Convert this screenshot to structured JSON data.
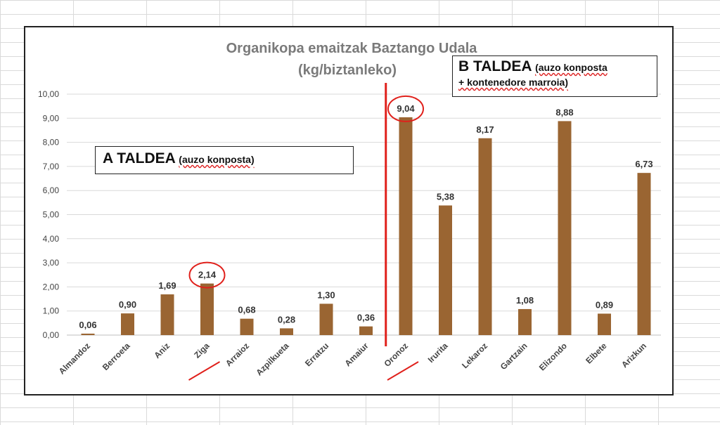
{
  "chart_data": {
    "type": "bar",
    "title": "Organikopa emaitzak Baztango Udala",
    "subtitle": "(kg/biztanleko)",
    "xlabel": "",
    "ylabel": "",
    "ylim": [
      0,
      10
    ],
    "yticks": [
      "0,00",
      "1,00",
      "2,00",
      "3,00",
      "4,00",
      "5,00",
      "6,00",
      "7,00",
      "8,00",
      "9,00",
      "10,00"
    ],
    "grid": true,
    "bar_color": "#9a6532",
    "categories": [
      "Almandoz",
      "Berroeta",
      "Aniz",
      "Ziga",
      "Arraioz",
      "Azpilkueta",
      "Erratzu",
      "Amaiur",
      "Oronoz",
      "Irurita",
      "Lekaroz",
      "Gartzain",
      "Elizondo",
      "Elbete",
      "Arizkun"
    ],
    "values": [
      0.06,
      0.9,
      1.69,
      2.14,
      0.68,
      0.28,
      1.3,
      0.36,
      9.04,
      5.38,
      8.17,
      1.08,
      8.88,
      0.89,
      6.73
    ],
    "value_labels": [
      "0,06",
      "0,90",
      "1,69",
      "2,14",
      "0,68",
      "0,28",
      "1,30",
      "0,36",
      "9,04",
      "5,38",
      "8,17",
      "1,08",
      "8,88",
      "0,89",
      "6,73"
    ],
    "highlighted": [
      "Ziga",
      "Oronoz"
    ],
    "highlight_color": "#e0201b",
    "groups": {
      "a": {
        "title": "A TALDEA",
        "note": "(auzo konposta)"
      },
      "b": {
        "title": "B TALDEA",
        "note_line1": "(auzo konposta",
        "note_line2": "+ kontenedore marroia)"
      }
    },
    "divider_after_category": "Amaiur"
  }
}
